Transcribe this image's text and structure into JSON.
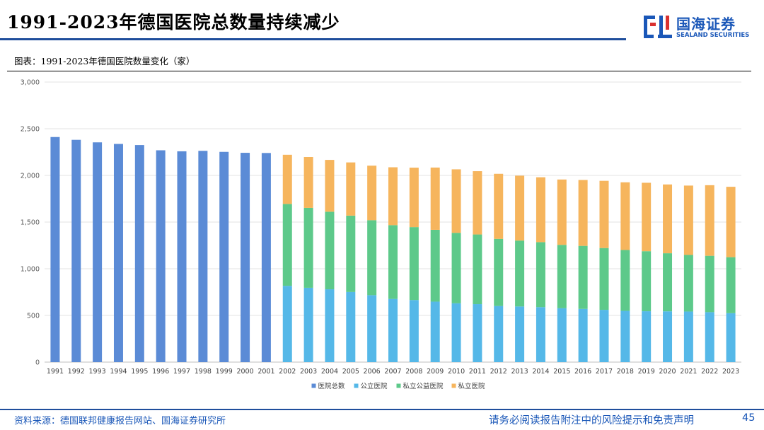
{
  "header": {
    "title": "1991-2023年德国医院总数量持续减少",
    "logo_cn": "国海证券",
    "logo_en": "SEALAND SECURITIES"
  },
  "figure": {
    "label": "图表：1991-2023年德国医院数量变化（家）"
  },
  "chart_data": {
    "type": "bar",
    "stacked": true,
    "title": "1991-2023年德国医院数量变化（家）",
    "xlabel": "",
    "ylabel": "",
    "ylim": [
      0,
      3000
    ],
    "yticks": [
      0,
      500,
      1000,
      1500,
      2000,
      2500,
      3000
    ],
    "ytick_labels": [
      "0",
      "500",
      "1,000",
      "1,500",
      "2,000",
      "2,500",
      "3,000"
    ],
    "grid": true,
    "legend_position": "bottom",
    "categories": [
      "1991",
      "1992",
      "1993",
      "1994",
      "1995",
      "1996",
      "1997",
      "1998",
      "1999",
      "2000",
      "2001",
      "2002",
      "2003",
      "2004",
      "2005",
      "2006",
      "2007",
      "2008",
      "2009",
      "2010",
      "2011",
      "2012",
      "2013",
      "2014",
      "2015",
      "2016",
      "2017",
      "2018",
      "2019",
      "2020",
      "2021",
      "2022",
      "2023"
    ],
    "series": [
      {
        "name": "医院总数",
        "color": "#5b8bd6",
        "values": [
          2411,
          2381,
          2354,
          2337,
          2325,
          2269,
          2258,
          2263,
          2252,
          2242,
          2240,
          null,
          null,
          null,
          null,
          null,
          null,
          null,
          null,
          null,
          null,
          null,
          null,
          null,
          null,
          null,
          null,
          null,
          null,
          null,
          null,
          null,
          null
        ]
      },
      {
        "name": "公立医院",
        "color": "#55b8e8",
        "values": [
          null,
          null,
          null,
          null,
          null,
          null,
          null,
          null,
          null,
          null,
          null,
          817,
          796,
          780,
          751,
          717,
          677,
          665,
          648,
          630,
          621,
          601,
          596,
          589,
          577,
          570,
          560,
          549,
          545,
          544,
          542,
          535,
          524
        ]
      },
      {
        "name": "私立公益医院",
        "color": "#5dc98a",
        "values": [
          null,
          null,
          null,
          null,
          null,
          null,
          null,
          null,
          null,
          null,
          null,
          877,
          856,
          831,
          818,
          803,
          790,
          781,
          769,
          755,
          746,
          719,
          706,
          696,
          679,
          675,
          662,
          652,
          643,
          622,
          606,
          604,
          600
        ]
      },
      {
        "name": "私立医院",
        "color": "#f6b55d",
        "values": [
          null,
          null,
          null,
          null,
          null,
          null,
          null,
          null,
          null,
          null,
          null,
          527,
          545,
          555,
          570,
          584,
          620,
          637,
          667,
          680,
          678,
          697,
          695,
          695,
          700,
          706,
          720,
          725,
          733,
          737,
          743,
          756,
          754
        ]
      }
    ]
  },
  "footer": {
    "source": "资料来源：德国联邦健康报告网站、国海证券研究所",
    "disclaimer": "请务必阅读报告附注中的风险提示和免责声明",
    "page_number": "45"
  }
}
